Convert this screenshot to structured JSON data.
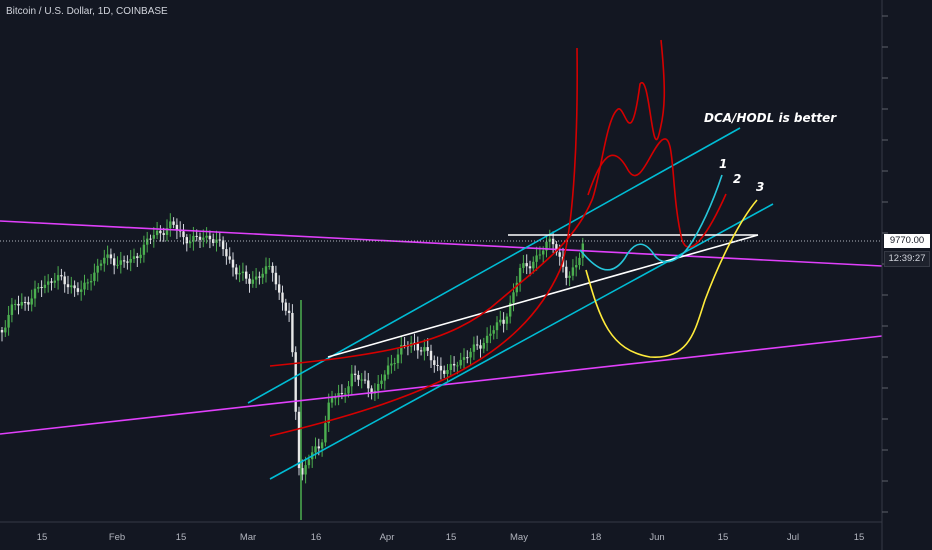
{
  "header": {
    "title": "Bitcoin / U.S. Dollar, 1D, COINBASE"
  },
  "price_axis": {
    "last_price": "9770.00",
    "countdown": "12:39:27"
  },
  "chart_data": {
    "type": "candlestick",
    "title": "Bitcoin / U.S. Dollar, 1D, COINBASE",
    "x_tick_labels": [
      "15",
      "Feb",
      "15",
      "Mar",
      "16",
      "Apr",
      "15",
      "May",
      "18",
      "Jun",
      "15",
      "Jul",
      "15"
    ],
    "annotations": [
      {
        "text": "DCA/HODL is better",
        "color": "#ffffff"
      },
      {
        "text": "1",
        "color": "#ffffff"
      },
      {
        "text": "2",
        "color": "#ffffff"
      },
      {
        "text": "3",
        "color": "#ffffff"
      }
    ],
    "colors": {
      "up": "#26a69a",
      "up_bright": "#4caf50",
      "down": "#ef5350",
      "background": "#131722",
      "channel": "#00bcd4",
      "magenta": "#e040fb",
      "red_curves": "#d50000",
      "yellow_path": "#ffeb3b",
      "cyan_path": "#26c6da",
      "white_lines": "#ffffff"
    },
    "last_price": 9770.0
  }
}
